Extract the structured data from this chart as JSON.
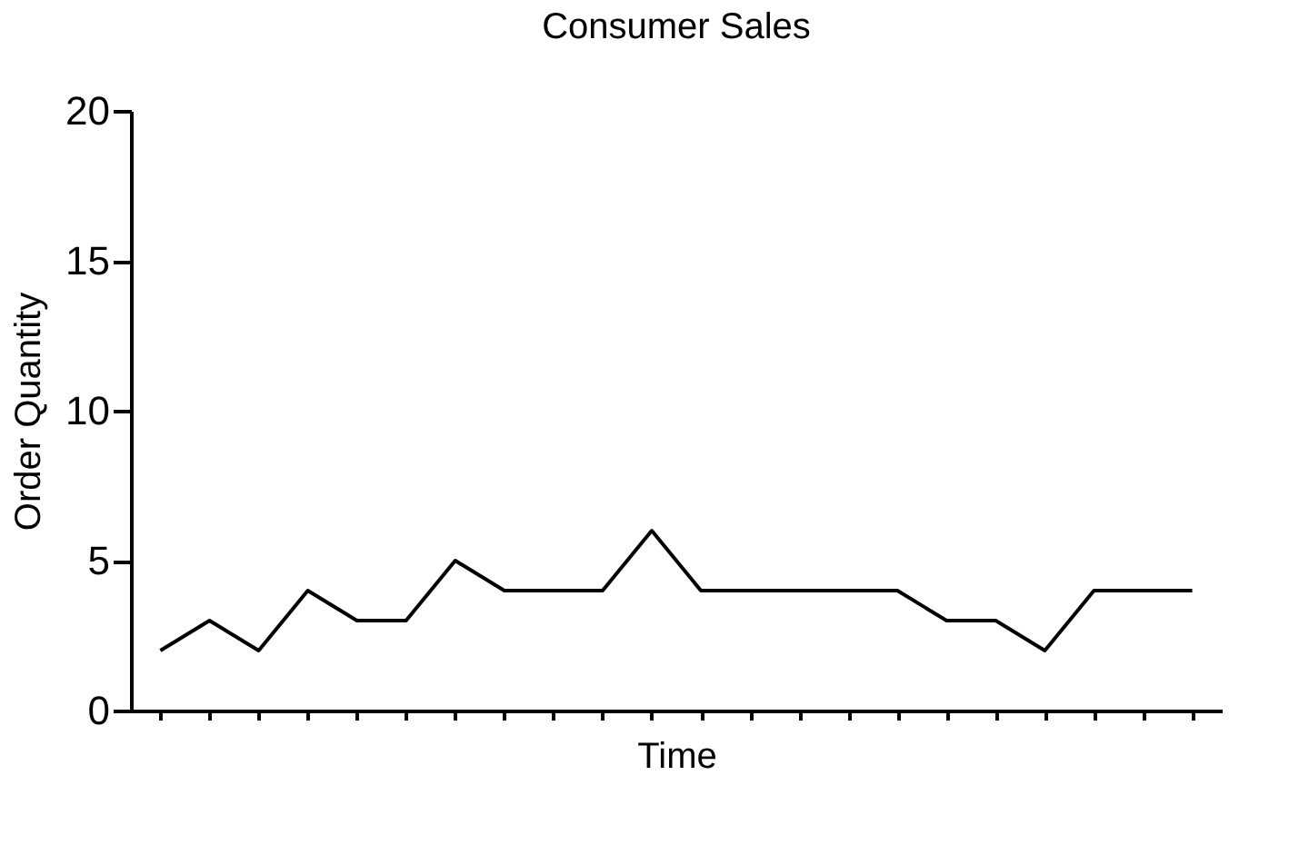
{
  "chart_data": {
    "type": "line",
    "title": "Consumer Sales",
    "xlabel": "Time",
    "ylabel": "Order Quantity",
    "categories": [
      null,
      null,
      null,
      null,
      null,
      null,
      null,
      null,
      null,
      null,
      null,
      null,
      null,
      null,
      null,
      null,
      null,
      null,
      null,
      null,
      null,
      null
    ],
    "series": [
      {
        "color": "#000000",
        "values": [
          2,
          3,
          2,
          4,
          3,
          3,
          5,
          4,
          4,
          4,
          6,
          4,
          4,
          4,
          4,
          4,
          3,
          3,
          2,
          4,
          4,
          4
        ]
      }
    ],
    "ylim": [
      0,
      20
    ],
    "yticks": [
      0,
      5,
      10,
      15,
      20
    ],
    "grid": false,
    "legend": false,
    "marker": "none",
    "line_style": "solid"
  }
}
